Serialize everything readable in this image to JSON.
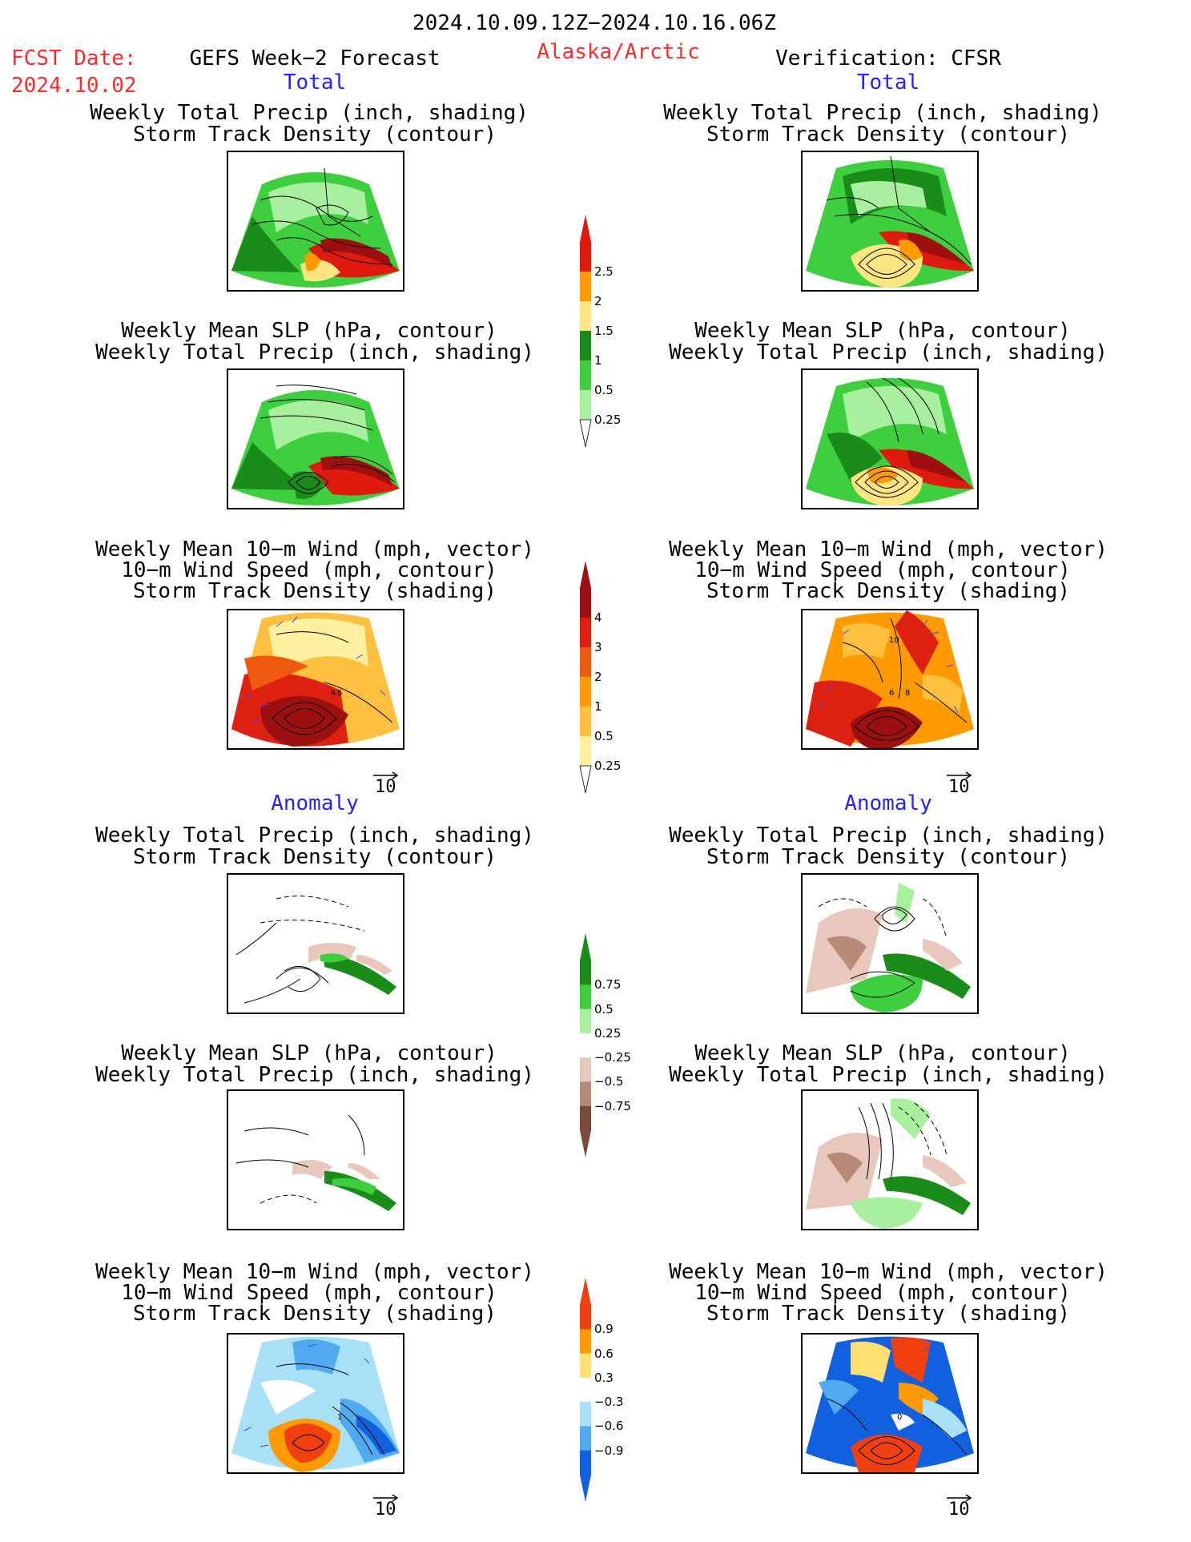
{
  "header": {
    "period": "2024.10.09.12Z−2024.10.16.06Z",
    "fcst_label": "FCST Date:",
    "fcst_date": "2024.10.02",
    "model": "GEFS Week−2 Forecast",
    "region": "Alaska/Arctic",
    "verification": "Verification: CFSR"
  },
  "sections": {
    "total": "Total",
    "anomaly": "Anomaly"
  },
  "titles": {
    "precip_storm": [
      "Weekly Total Precip (inch, shading)",
      "Storm Track Density (contour)"
    ],
    "slp_precip": [
      "Weekly Mean SLP (hPa, contour)",
      "Weekly Total Precip (inch, shading)"
    ],
    "wind_storm": [
      "Weekly Mean 10−m Wind (mph, vector)",
      "10−m Wind Speed (mph, contour)",
      "Storm Track Density (shading)"
    ]
  },
  "vector_ref": "10",
  "map_labels": {
    "fcst_total_wind": [
      "4",
      "6"
    ],
    "ver_total_wind": [
      "10",
      "6",
      "8"
    ],
    "fcst_anom_wind": [
      "1"
    ],
    "ver_anom_wind": [
      "0"
    ]
  },
  "colorbars": {
    "precip_total": {
      "labels": [
        "2.5",
        "2",
        "1.5",
        "1",
        "0.5",
        "0.25"
      ],
      "colors": [
        "#e01a0f",
        "#ff9a00",
        "#ffe680",
        "#1a8c1a",
        "#3ecf3e",
        "#a8f0a0"
      ]
    },
    "storm_total": {
      "labels": [
        "4",
        "3",
        "2",
        "1",
        "0.5",
        "0.25"
      ],
      "colors": [
        "#9e1010",
        "#dd2010",
        "#f05a10",
        "#ff9a00",
        "#ffc040",
        "#fff0a0"
      ]
    },
    "precip_anom": {
      "labels": [
        "0.75",
        "0.5",
        "0.25",
        "−0.25",
        "−0.5",
        "−0.75"
      ],
      "colors": [
        "#1a8c1a",
        "#3ecf3e",
        "#a8f0a0",
        "#ffffff",
        "#e8c8bc",
        "#b88a78",
        "#7a4a3a"
      ]
    },
    "storm_anom": {
      "labels": [
        "0.9",
        "0.6",
        "0.3",
        "−0.3",
        "−0.6",
        "−0.9"
      ],
      "colors": [
        "#f04010",
        "#ff9a00",
        "#ffe070",
        "#ffffff",
        "#a8e0f8",
        "#50aaf0",
        "#1060e0"
      ]
    }
  },
  "palette": {
    "red_text": "#ff2a2a",
    "blue_text": "#2323ff",
    "vector": "#4444ff"
  }
}
